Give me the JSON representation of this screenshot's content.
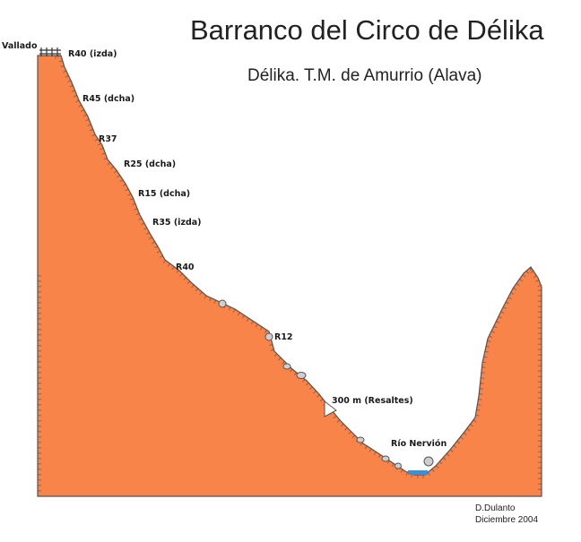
{
  "title": "Barranco del Circo de Délika",
  "subtitle": "Délika. T.M. de Amurrio (Alava)",
  "fence_label": "Vallado",
  "rappels": [
    {
      "label": "R40 (izda)"
    },
    {
      "label": "R45 (dcha)"
    },
    {
      "label": "R37"
    },
    {
      "label": "R25 (dcha)"
    },
    {
      "label": "R15 (dcha)"
    },
    {
      "label": "R35 (izda)"
    },
    {
      "label": "R40"
    },
    {
      "label": "R12"
    },
    {
      "label": "300 m (Resaltes)"
    }
  ],
  "river_label": "Río Nervión",
  "author": "D.Dulanto",
  "date": "Diciembre 2004",
  "colors": {
    "terrain": "#f8844a",
    "outline": "#555555",
    "water": "#3a8fd8",
    "boulder": "#cfcfcf"
  }
}
